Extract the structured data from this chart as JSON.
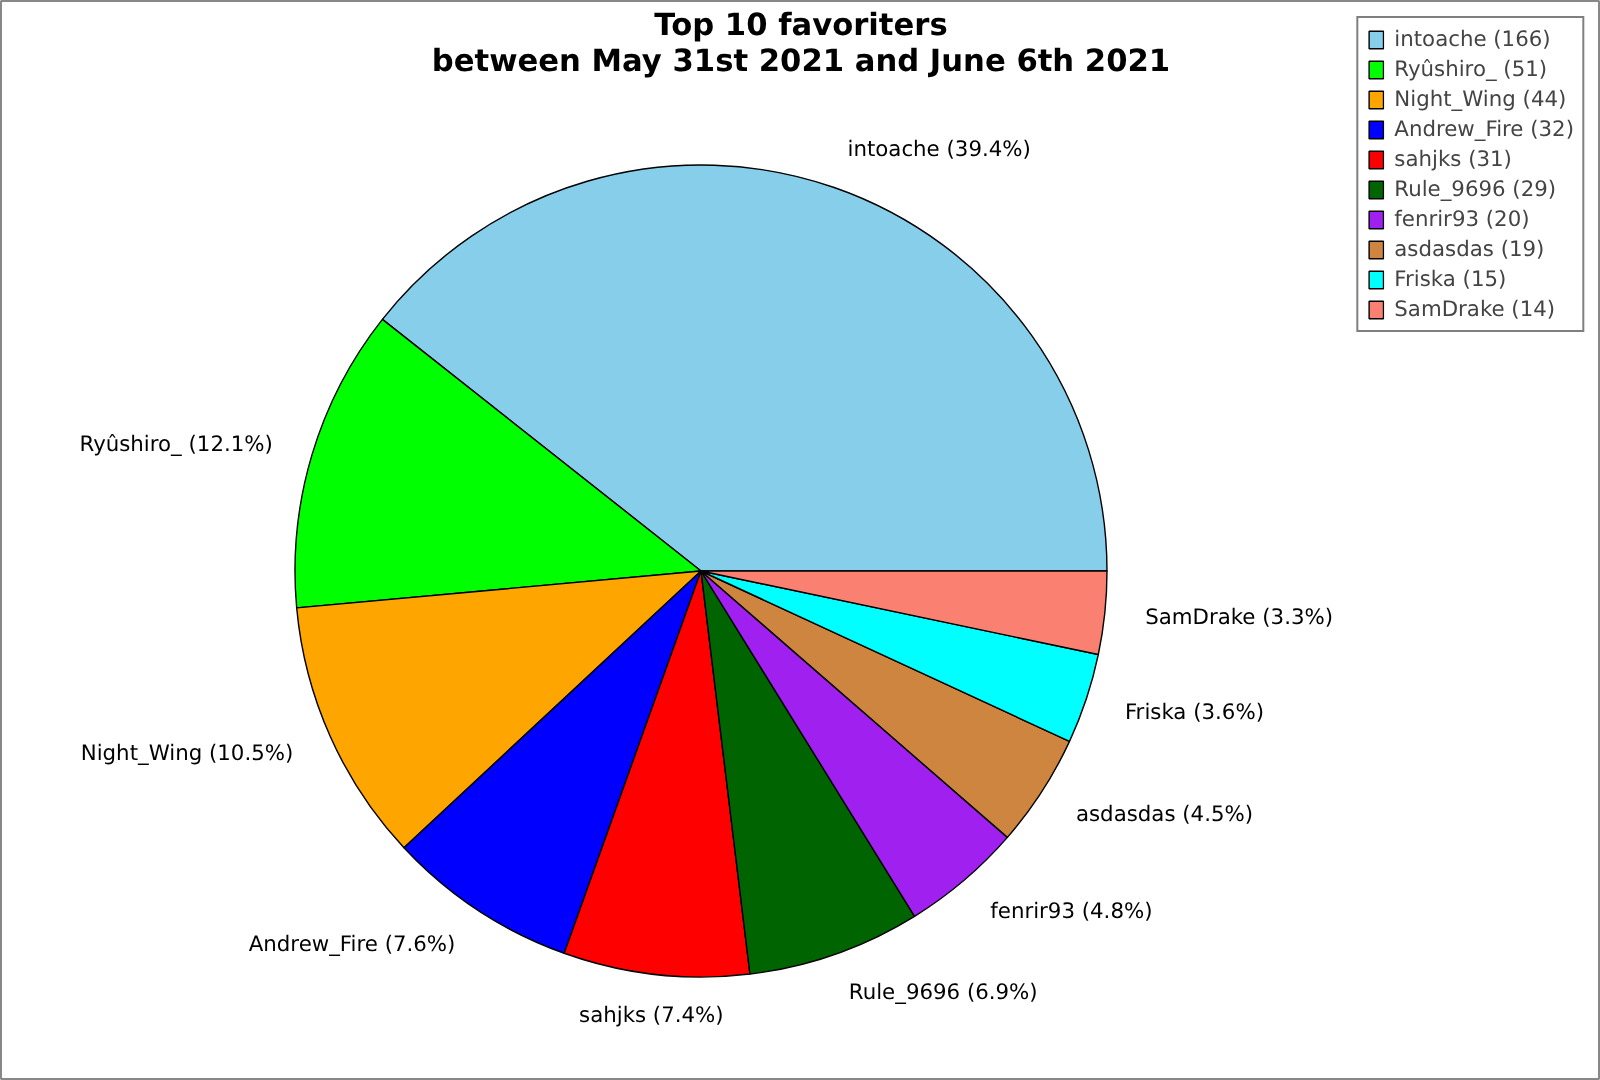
{
  "chart_data": {
    "type": "pie",
    "title": "Top 10 favoriters\nbetween May 31st 2021 and June 6th 2021",
    "categories": [
      "intoache (166)",
      "Ryûshiro_ (51)",
      "Night_Wing (44)",
      "Andrew_Fire (32)",
      "sahjks (31)",
      "Rule_9696 (29)",
      "fenrir93 (20)",
      "asdasdas (19)",
      "Friska (15)",
      "SamDrake (14)"
    ],
    "values": [
      39.4,
      12.1,
      10.5,
      7.6,
      7.4,
      6.9,
      4.8,
      4.5,
      3.6,
      3.3
    ],
    "value_labels": [
      "intoache (39.4%)",
      "Ryûshiro_ (12.1%)",
      "Night_Wing (10.5%)",
      "Andrew_Fire (7.6%)",
      "sahjks (7.4%)",
      "Rule_9696 (6.9%)",
      "fenrir93 (4.8%)",
      "asdasdas (4.5%)",
      "Friska (3.6%)",
      "SamDrake (3.3%)"
    ],
    "colors": [
      "#87ceeb",
      "#00ff00",
      "#ffa500",
      "#0000ff",
      "#ff0000",
      "#006400",
      "#a020f0",
      "#cd853f",
      "#00ffff",
      "#fa8072"
    ],
    "legend": "top right"
  }
}
